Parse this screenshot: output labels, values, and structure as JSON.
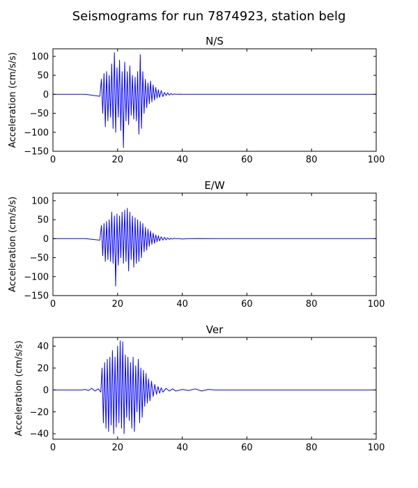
{
  "figure": {
    "suptitle": "Seismograms for run 7874923, station belg"
  },
  "chart_data": [
    {
      "type": "line",
      "title": "N/S",
      "ylabel": "Acceleration (cm/s/s)",
      "xlabel": "",
      "xlim": [
        0,
        100
      ],
      "ylim": [
        -150,
        120
      ],
      "xticks": [
        0,
        20,
        40,
        60,
        80,
        100
      ],
      "yticks": [
        -150,
        -100,
        -50,
        0,
        50,
        100
      ],
      "color": "#0000ff",
      "grid": false,
      "x": [
        0,
        10,
        14.5,
        15.0,
        15.4,
        15.8,
        16.2,
        16.6,
        17.0,
        17.4,
        17.8,
        18.2,
        18.6,
        19.0,
        19.4,
        19.8,
        20.2,
        20.6,
        21.0,
        21.4,
        21.8,
        22.2,
        22.6,
        23.0,
        23.4,
        23.8,
        24.2,
        24.6,
        25.0,
        25.4,
        25.8,
        26.2,
        26.6,
        27.0,
        27.4,
        27.8,
        28.2,
        28.6,
        29.0,
        29.4,
        29.8,
        30.2,
        30.6,
        31.0,
        31.4,
        31.8,
        32.2,
        32.6,
        33.0,
        33.5,
        34.0,
        34.5,
        35.0,
        35.5,
        36.0,
        36.5,
        37.0,
        37.5,
        38.0,
        39.0,
        40.0,
        42.0,
        45.0,
        50.0,
        100.0
      ],
      "y": [
        0,
        0,
        -5,
        40,
        -50,
        55,
        -85,
        60,
        -70,
        50,
        -60,
        80,
        -90,
        110,
        -100,
        70,
        -60,
        90,
        -95,
        60,
        -140,
        85,
        -70,
        60,
        -80,
        75,
        -55,
        50,
        -65,
        45,
        -70,
        60,
        -105,
        105,
        -90,
        60,
        -50,
        40,
        -35,
        30,
        -25,
        35,
        -20,
        25,
        -15,
        18,
        -10,
        12,
        -8,
        10,
        -6,
        5,
        -3,
        4,
        -2,
        2,
        -1,
        1,
        0,
        0.5,
        0,
        0.3,
        0,
        0,
        0
      ]
    },
    {
      "type": "line",
      "title": "E/W",
      "ylabel": "Acceleration (cm/s/s)",
      "xlabel": "",
      "xlim": [
        0,
        100
      ],
      "ylim": [
        -150,
        120
      ],
      "xticks": [
        0,
        20,
        40,
        60,
        80,
        100
      ],
      "yticks": [
        -150,
        -100,
        -50,
        0,
        50,
        100
      ],
      "color": "#0000ff",
      "grid": false,
      "x": [
        0,
        10,
        14.5,
        15.0,
        15.4,
        15.8,
        16.2,
        16.6,
        17.0,
        17.4,
        17.8,
        18.2,
        18.6,
        19.0,
        19.4,
        19.8,
        20.2,
        20.6,
        21.0,
        21.4,
        21.8,
        22.2,
        22.6,
        23.0,
        23.4,
        23.8,
        24.2,
        24.6,
        25.0,
        25.4,
        25.8,
        26.2,
        26.6,
        27.0,
        27.4,
        27.8,
        28.2,
        28.6,
        29.0,
        29.4,
        29.8,
        30.2,
        30.6,
        31.0,
        31.4,
        31.8,
        32.2,
        32.6,
        33.0,
        33.5,
        34.0,
        34.5,
        35.0,
        35.5,
        36.0,
        36.5,
        37.0,
        37.5,
        38.0,
        39.0,
        40.0,
        42.0,
        45.0,
        50.0,
        100.0
      ],
      "y": [
        0,
        0,
        -4,
        35,
        -45,
        40,
        -60,
        45,
        -55,
        50,
        -60,
        70,
        -65,
        60,
        -125,
        65,
        -70,
        60,
        -50,
        70,
        -65,
        75,
        -60,
        80,
        -85,
        70,
        -55,
        60,
        -75,
        55,
        -65,
        50,
        -60,
        45,
        -50,
        40,
        -35,
        30,
        -30,
        25,
        -20,
        20,
        -15,
        15,
        -12,
        10,
        -8,
        8,
        -6,
        5,
        -4,
        4,
        -3,
        2,
        -2,
        1,
        -1,
        1,
        0,
        0,
        -1,
        0,
        0.5,
        0,
        0
      ]
    },
    {
      "type": "line",
      "title": "Ver",
      "ylabel": "Acceleration (cm/s/s)",
      "xlabel": "",
      "xlim": [
        0,
        100
      ],
      "ylim": [
        -45,
        48
      ],
      "xticks": [
        0,
        20,
        40,
        60,
        80,
        100
      ],
      "yticks": [
        -40,
        -20,
        0,
        20,
        40
      ],
      "color": "#0000ff",
      "grid": false,
      "x": [
        0,
        9.0,
        10.0,
        11.0,
        12.0,
        13.0,
        14.0,
        14.8,
        15.2,
        15.6,
        16.0,
        16.4,
        16.8,
        17.2,
        17.6,
        18.0,
        18.4,
        18.8,
        19.2,
        19.6,
        20.0,
        20.4,
        20.8,
        21.2,
        21.6,
        22.0,
        22.4,
        22.8,
        23.2,
        23.6,
        24.0,
        24.4,
        24.8,
        25.2,
        25.6,
        26.0,
        26.4,
        26.8,
        27.2,
        27.6,
        28.0,
        28.4,
        28.8,
        29.2,
        29.6,
        30.0,
        30.5,
        31.0,
        31.5,
        32.0,
        32.5,
        33.0,
        33.5,
        34.0,
        35.0,
        36.0,
        37.0,
        38.0,
        40.0,
        42.0,
        44.0,
        46.0,
        48.0,
        50.0,
        55.0,
        100.0
      ],
      "y": [
        0,
        0,
        0.5,
        -0.5,
        1.5,
        -1,
        1,
        -2,
        20,
        -30,
        25,
        -35,
        28,
        -38,
        30,
        -32,
        36,
        -40,
        30,
        -34,
        40,
        -30,
        45,
        -35,
        44,
        -40,
        32,
        -25,
        30,
        -28,
        25,
        -35,
        30,
        -38,
        22,
        -20,
        28,
        -30,
        20,
        -25,
        18,
        -15,
        15,
        -12,
        10,
        -10,
        8,
        -6,
        5,
        -4,
        3,
        -3,
        2,
        -2,
        1.5,
        -1,
        1,
        -1,
        0.5,
        -0.5,
        1,
        -1,
        0.5,
        0,
        0,
        0
      ]
    }
  ]
}
